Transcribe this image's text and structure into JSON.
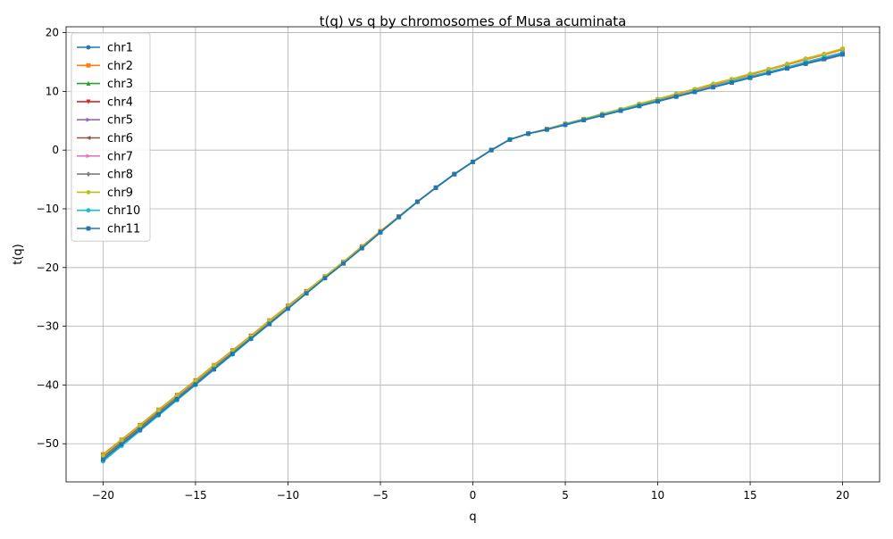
{
  "chart_data": {
    "type": "line",
    "title": "t(q) vs q by chromosomes of Musa acuminata",
    "xlabel": "q",
    "ylabel": "t(q)",
    "xlim": [
      -22,
      22
    ],
    "ylim": [
      -56.5,
      21
    ],
    "x_ticks": [
      -20,
      -15,
      -10,
      -5,
      0,
      5,
      10,
      15,
      20
    ],
    "y_ticks": [
      -50,
      -40,
      -30,
      -20,
      -10,
      0,
      10,
      20
    ],
    "grid": true,
    "legend_position": "top-left",
    "x": [
      -20,
      -19,
      -18,
      -17,
      -16,
      -15,
      -14,
      -13,
      -12,
      -11,
      -10,
      -9,
      -8,
      -7,
      -6,
      -5,
      -4,
      -3,
      -2,
      -1,
      0,
      1,
      2,
      3,
      4,
      5,
      6,
      7,
      8,
      9,
      10,
      11,
      12,
      13,
      14,
      15,
      16,
      17,
      18,
      19,
      20
    ],
    "series": [
      {
        "name": "chr1",
        "color": "#1f77b4",
        "marker": "circle",
        "values": [
          -52.2,
          -49.6,
          -47.1,
          -44.5,
          -42.0,
          -39.4,
          -36.9,
          -34.4,
          -31.9,
          -29.3,
          -26.8,
          -24.2,
          -21.7,
          -19.2,
          -16.6,
          -14.0,
          -11.4,
          -8.8,
          -6.4,
          -4.1,
          -2.0,
          0.0,
          1.8,
          2.8,
          3.5,
          4.3,
          5.1,
          5.9,
          6.7,
          7.5,
          8.3,
          9.1,
          9.9,
          10.7,
          11.5,
          12.3,
          13.1,
          13.9,
          14.7,
          15.5,
          16.3
        ]
      },
      {
        "name": "chr2",
        "color": "#ff7f0e",
        "marker": "square",
        "values": [
          -51.8,
          -49.3,
          -46.8,
          -44.2,
          -41.7,
          -39.2,
          -36.6,
          -34.1,
          -31.6,
          -29.0,
          -26.5,
          -24.0,
          -21.5,
          -19.0,
          -16.4,
          -13.8,
          -11.3,
          -8.8,
          -6.4,
          -4.1,
          -2.0,
          0.0,
          1.8,
          2.8,
          3.6,
          4.5,
          5.3,
          6.1,
          6.9,
          7.8,
          8.6,
          9.5,
          10.3,
          11.1,
          12.0,
          12.8,
          13.7,
          14.5,
          15.4,
          16.2,
          17.1
        ]
      },
      {
        "name": "chr3",
        "color": "#2ca02c",
        "marker": "triangle-up",
        "values": [
          -52.5,
          -49.9,
          -47.3,
          -44.7,
          -42.2,
          -39.6,
          -37.1,
          -34.5,
          -32.0,
          -29.4,
          -26.9,
          -24.3,
          -21.8,
          -19.3,
          -16.7,
          -14.0,
          -11.4,
          -8.8,
          -6.4,
          -4.1,
          -2.0,
          0.0,
          1.8,
          2.8,
          3.5,
          4.4,
          5.2,
          6.0,
          6.8,
          7.6,
          8.4,
          9.2,
          10.0,
          10.8,
          11.6,
          12.5,
          13.3,
          14.1,
          14.9,
          15.7,
          16.5
        ]
      },
      {
        "name": "chr4",
        "color": "#d62728",
        "marker": "triangle-down",
        "values": [
          -52.0,
          -49.5,
          -46.9,
          -44.4,
          -41.8,
          -39.3,
          -36.8,
          -34.2,
          -31.7,
          -29.2,
          -26.6,
          -24.1,
          -21.6,
          -19.1,
          -16.5,
          -13.9,
          -11.3,
          -8.8,
          -6.4,
          -4.1,
          -2.0,
          0.0,
          1.8,
          2.8,
          3.5,
          4.4,
          5.2,
          6.0,
          6.8,
          7.6,
          8.4,
          9.2,
          10.0,
          10.8,
          11.6,
          12.4,
          13.2,
          14.0,
          14.8,
          15.6,
          16.4
        ]
      },
      {
        "name": "chr5",
        "color": "#9467bd",
        "marker": "triangle-right",
        "values": [
          -52.3,
          -49.7,
          -47.2,
          -44.6,
          -42.1,
          -39.5,
          -37.0,
          -34.4,
          -31.9,
          -29.3,
          -26.8,
          -24.2,
          -21.7,
          -19.2,
          -16.6,
          -14.0,
          -11.4,
          -8.8,
          -6.4,
          -4.1,
          -2.0,
          0.0,
          1.8,
          2.8,
          3.5,
          4.3,
          5.1,
          5.9,
          6.7,
          7.5,
          8.3,
          9.1,
          9.9,
          10.7,
          11.5,
          12.3,
          13.1,
          13.9,
          14.7,
          15.4,
          16.2
        ]
      },
      {
        "name": "chr6",
        "color": "#8c564b",
        "marker": "triangle-left",
        "values": [
          -52.1,
          -49.6,
          -47.0,
          -44.5,
          -41.9,
          -39.4,
          -36.9,
          -34.3,
          -31.8,
          -29.2,
          -26.7,
          -24.2,
          -21.6,
          -19.1,
          -16.6,
          -13.9,
          -11.3,
          -8.8,
          -6.4,
          -4.1,
          -2.0,
          0.0,
          1.8,
          2.8,
          3.5,
          4.4,
          5.2,
          6.0,
          6.8,
          7.6,
          8.4,
          9.2,
          10.0,
          10.8,
          11.6,
          12.4,
          13.2,
          14.0,
          14.8,
          15.6,
          16.4
        ]
      },
      {
        "name": "chr7",
        "color": "#e377c2",
        "marker": "triangle-right",
        "values": [
          -52.6,
          -50.0,
          -47.4,
          -44.9,
          -42.3,
          -39.7,
          -37.2,
          -34.6,
          -32.0,
          -29.5,
          -26.9,
          -24.4,
          -21.8,
          -19.3,
          -16.7,
          -14.0,
          -11.4,
          -8.8,
          -6.4,
          -4.1,
          -2.0,
          0.0,
          1.8,
          2.8,
          3.5,
          4.4,
          5.2,
          6.0,
          6.8,
          7.6,
          8.4,
          9.2,
          10.1,
          10.9,
          11.7,
          12.5,
          13.3,
          14.1,
          15.0,
          15.8,
          16.6
        ]
      },
      {
        "name": "chr8",
        "color": "#7f7f7f",
        "marker": "diamond",
        "values": [
          -52.4,
          -49.8,
          -47.3,
          -44.7,
          -42.1,
          -39.6,
          -37.0,
          -34.5,
          -31.9,
          -29.4,
          -26.8,
          -24.3,
          -21.8,
          -19.2,
          -16.7,
          -14.0,
          -11.4,
          -8.8,
          -6.4,
          -4.1,
          -2.0,
          0.0,
          1.8,
          2.8,
          3.5,
          4.4,
          5.2,
          6.0,
          6.8,
          7.6,
          8.4,
          9.2,
          10.0,
          10.8,
          11.7,
          12.5,
          13.3,
          14.1,
          14.9,
          15.7,
          16.5
        ]
      },
      {
        "name": "chr9",
        "color": "#bcbd22",
        "marker": "circle",
        "values": [
          -52.0,
          -49.4,
          -46.9,
          -44.3,
          -41.8,
          -39.3,
          -36.7,
          -34.2,
          -31.7,
          -29.1,
          -26.6,
          -24.1,
          -21.5,
          -19.0,
          -16.5,
          -13.9,
          -11.3,
          -8.8,
          -6.4,
          -4.1,
          -2.0,
          0.0,
          1.8,
          2.8,
          3.6,
          4.5,
          5.3,
          6.2,
          7.0,
          7.9,
          8.7,
          9.6,
          10.4,
          11.3,
          12.1,
          13.0,
          13.8,
          14.7,
          15.6,
          16.4,
          17.3
        ]
      },
      {
        "name": "chr10",
        "color": "#17becf",
        "marker": "circle",
        "values": [
          -53.0,
          -50.4,
          -47.8,
          -45.2,
          -42.6,
          -40.0,
          -37.4,
          -34.8,
          -32.2,
          -29.6,
          -27.0,
          -24.4,
          -21.8,
          -19.3,
          -16.7,
          -14.0,
          -11.4,
          -8.8,
          -6.4,
          -4.1,
          -2.0,
          0.0,
          1.8,
          2.8,
          3.5,
          4.4,
          5.2,
          6.0,
          6.8,
          7.6,
          8.4,
          9.2,
          10.0,
          10.8,
          11.7,
          12.5,
          13.3,
          14.1,
          15.0,
          15.8,
          16.6
        ]
      },
      {
        "name": "chr11",
        "color": "#1f77b4",
        "marker": "square",
        "values": [
          -52.7,
          -50.1,
          -47.6,
          -45.0,
          -42.4,
          -39.9,
          -37.3,
          -34.7,
          -32.1,
          -29.6,
          -27.0,
          -24.4,
          -21.8,
          -19.3,
          -16.7,
          -14.0,
          -11.4,
          -8.8,
          -6.4,
          -4.1,
          -2.0,
          0.0,
          1.8,
          2.8,
          3.5,
          4.3,
          5.1,
          5.9,
          6.7,
          7.5,
          8.3,
          9.1,
          9.9,
          10.7,
          11.5,
          12.3,
          13.1,
          13.9,
          14.7,
          15.5,
          16.3
        ]
      }
    ]
  }
}
